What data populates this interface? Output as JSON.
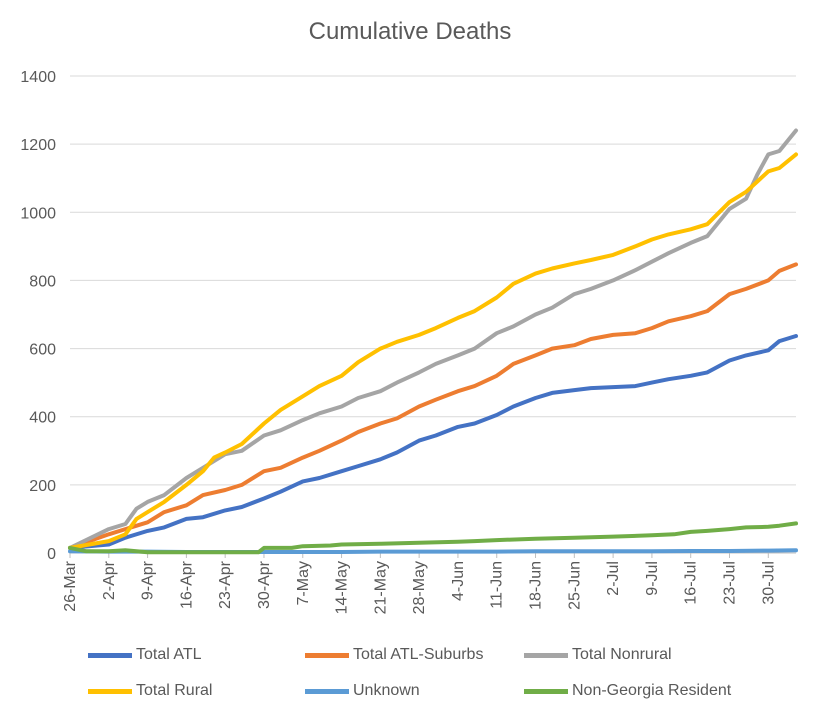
{
  "chart_data": {
    "type": "line",
    "title": "Cumulative Deaths",
    "xlabel": "",
    "ylabel": "",
    "ylim": [
      0,
      1400
    ],
    "yticks": [
      0,
      200,
      400,
      600,
      800,
      1000,
      1200,
      1400
    ],
    "grid": "horizontal",
    "legend_position": "bottom",
    "x_ticks": [
      "26-Mar",
      "2-Apr",
      "9-Apr",
      "16-Apr",
      "23-Apr",
      "30-Apr",
      "7-May",
      "14-May",
      "21-May",
      "28-May",
      "4-Jun",
      "11-Jun",
      "18-Jun",
      "25-Jun",
      "2-Jul",
      "9-Jul",
      "16-Jul",
      "23-Jul",
      "30-Jul"
    ],
    "x_days": [
      0,
      7,
      14,
      21,
      28,
      35,
      42,
      49,
      56,
      63,
      70,
      77,
      84,
      91,
      98,
      105,
      112,
      119,
      126
    ],
    "x_range_days": [
      0,
      131
    ],
    "x_start_date": "26-Mar",
    "series": [
      {
        "name": "Total ATL",
        "color": "#4472C4",
        "points": [
          [
            0,
            15
          ],
          [
            7,
            25
          ],
          [
            10,
            45
          ],
          [
            14,
            65
          ],
          [
            17,
            75
          ],
          [
            21,
            100
          ],
          [
            24,
            105
          ],
          [
            28,
            125
          ],
          [
            31,
            135
          ],
          [
            35,
            160
          ],
          [
            38,
            180
          ],
          [
            42,
            210
          ],
          [
            45,
            220
          ],
          [
            49,
            240
          ],
          [
            52,
            255
          ],
          [
            56,
            275
          ],
          [
            59,
            295
          ],
          [
            63,
            330
          ],
          [
            66,
            345
          ],
          [
            70,
            370
          ],
          [
            73,
            380
          ],
          [
            77,
            405
          ],
          [
            80,
            430
          ],
          [
            84,
            455
          ],
          [
            87,
            470
          ],
          [
            91,
            478
          ],
          [
            94,
            484
          ],
          [
            98,
            487
          ],
          [
            102,
            490
          ],
          [
            105,
            500
          ],
          [
            108,
            510
          ],
          [
            112,
            520
          ],
          [
            115,
            530
          ],
          [
            119,
            565
          ],
          [
            122,
            580
          ],
          [
            126,
            595
          ],
          [
            128,
            622
          ],
          [
            131,
            637
          ]
        ]
      },
      {
        "name": "Total ATL-Suburbs",
        "color": "#ED7D31",
        "points": [
          [
            0,
            15
          ],
          [
            7,
            55
          ],
          [
            10,
            70
          ],
          [
            14,
            90
          ],
          [
            17,
            120
          ],
          [
            21,
            140
          ],
          [
            24,
            170
          ],
          [
            28,
            185
          ],
          [
            31,
            200
          ],
          [
            35,
            240
          ],
          [
            38,
            250
          ],
          [
            42,
            280
          ],
          [
            45,
            300
          ],
          [
            49,
            330
          ],
          [
            52,
            355
          ],
          [
            56,
            380
          ],
          [
            59,
            395
          ],
          [
            63,
            430
          ],
          [
            66,
            450
          ],
          [
            70,
            475
          ],
          [
            73,
            490
          ],
          [
            77,
            520
          ],
          [
            80,
            555
          ],
          [
            84,
            580
          ],
          [
            87,
            600
          ],
          [
            91,
            610
          ],
          [
            94,
            628
          ],
          [
            98,
            640
          ],
          [
            102,
            645
          ],
          [
            105,
            660
          ],
          [
            108,
            680
          ],
          [
            112,
            695
          ],
          [
            115,
            710
          ],
          [
            119,
            760
          ],
          [
            122,
            775
          ],
          [
            126,
            800
          ],
          [
            128,
            828
          ],
          [
            131,
            847
          ]
        ]
      },
      {
        "name": "Total Nonrural",
        "color": "#A5A5A5",
        "points": [
          [
            0,
            15
          ],
          [
            7,
            70
          ],
          [
            10,
            85
          ],
          [
            12,
            130
          ],
          [
            14,
            150
          ],
          [
            17,
            170
          ],
          [
            21,
            220
          ],
          [
            24,
            250
          ],
          [
            28,
            290
          ],
          [
            31,
            300
          ],
          [
            35,
            345
          ],
          [
            38,
            360
          ],
          [
            42,
            390
          ],
          [
            45,
            410
          ],
          [
            49,
            430
          ],
          [
            52,
            455
          ],
          [
            56,
            475
          ],
          [
            59,
            500
          ],
          [
            63,
            530
          ],
          [
            66,
            555
          ],
          [
            70,
            580
          ],
          [
            73,
            600
          ],
          [
            77,
            645
          ],
          [
            80,
            665
          ],
          [
            84,
            700
          ],
          [
            87,
            720
          ],
          [
            91,
            760
          ],
          [
            94,
            775
          ],
          [
            98,
            800
          ],
          [
            102,
            830
          ],
          [
            105,
            855
          ],
          [
            108,
            880
          ],
          [
            112,
            910
          ],
          [
            115,
            930
          ],
          [
            119,
            1010
          ],
          [
            122,
            1040
          ],
          [
            124,
            1110
          ],
          [
            126,
            1170
          ],
          [
            128,
            1180
          ],
          [
            131,
            1240
          ]
        ]
      },
      {
        "name": "Total Rural",
        "color": "#FFC000",
        "points": [
          [
            0,
            15
          ],
          [
            7,
            35
          ],
          [
            10,
            55
          ],
          [
            12,
            100
          ],
          [
            14,
            120
          ],
          [
            17,
            150
          ],
          [
            21,
            200
          ],
          [
            24,
            240
          ],
          [
            26,
            280
          ],
          [
            28,
            295
          ],
          [
            31,
            320
          ],
          [
            35,
            380
          ],
          [
            38,
            420
          ],
          [
            42,
            460
          ],
          [
            45,
            490
          ],
          [
            49,
            520
          ],
          [
            52,
            560
          ],
          [
            56,
            600
          ],
          [
            59,
            620
          ],
          [
            63,
            640
          ],
          [
            66,
            660
          ],
          [
            70,
            690
          ],
          [
            73,
            710
          ],
          [
            77,
            750
          ],
          [
            80,
            790
          ],
          [
            84,
            820
          ],
          [
            87,
            835
          ],
          [
            91,
            850
          ],
          [
            94,
            860
          ],
          [
            98,
            875
          ],
          [
            102,
            900
          ],
          [
            105,
            920
          ],
          [
            108,
            935
          ],
          [
            112,
            950
          ],
          [
            115,
            965
          ],
          [
            119,
            1030
          ],
          [
            122,
            1060
          ],
          [
            124,
            1090
          ],
          [
            126,
            1120
          ],
          [
            128,
            1130
          ],
          [
            131,
            1170
          ]
        ]
      },
      {
        "name": "Unknown",
        "color": "#5B9BD5",
        "points": [
          [
            0,
            5
          ],
          [
            7,
            4
          ],
          [
            14,
            4
          ],
          [
            21,
            3
          ],
          [
            28,
            3
          ],
          [
            35,
            3
          ],
          [
            42,
            3
          ],
          [
            49,
            3
          ],
          [
            56,
            4
          ],
          [
            63,
            4
          ],
          [
            70,
            4
          ],
          [
            77,
            4
          ],
          [
            84,
            5
          ],
          [
            91,
            5
          ],
          [
            98,
            5
          ],
          [
            105,
            5
          ],
          [
            112,
            6
          ],
          [
            119,
            6
          ],
          [
            126,
            7
          ],
          [
            131,
            8
          ]
        ]
      },
      {
        "name": "Non-Georgia Resident",
        "color": "#70AD47",
        "points": [
          [
            0,
            15
          ],
          [
            3,
            5
          ],
          [
            7,
            5
          ],
          [
            10,
            8
          ],
          [
            14,
            2
          ],
          [
            21,
            2
          ],
          [
            28,
            2
          ],
          [
            34,
            2
          ],
          [
            35,
            15
          ],
          [
            40,
            15
          ],
          [
            42,
            20
          ],
          [
            47,
            22
          ],
          [
            49,
            25
          ],
          [
            56,
            27
          ],
          [
            63,
            30
          ],
          [
            70,
            33
          ],
          [
            73,
            35
          ],
          [
            77,
            38
          ],
          [
            84,
            42
          ],
          [
            91,
            45
          ],
          [
            98,
            48
          ],
          [
            105,
            52
          ],
          [
            109,
            55
          ],
          [
            112,
            62
          ],
          [
            115,
            65
          ],
          [
            119,
            70
          ],
          [
            122,
            75
          ],
          [
            126,
            77
          ],
          [
            128,
            80
          ],
          [
            131,
            87
          ]
        ]
      }
    ]
  }
}
